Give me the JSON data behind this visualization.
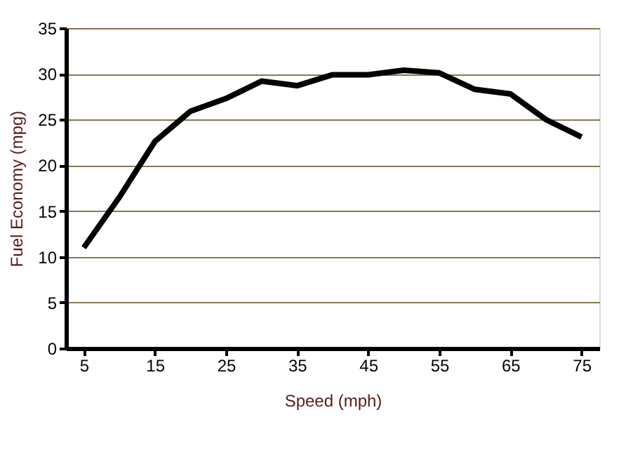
{
  "chart_data": {
    "type": "line",
    "xlabel": "Speed (mph)",
    "ylabel": "Fuel Economy (mpg)",
    "x": [
      5,
      10,
      15,
      20,
      25,
      30,
      35,
      40,
      45,
      50,
      55,
      60,
      65,
      70,
      75
    ],
    "series": [
      {
        "color": "#000000",
        "values": [
          11,
          16.5,
          22.6,
          25.9,
          27.3,
          29.2,
          28.7,
          29.9,
          29.9,
          30.4,
          30.1,
          28.3,
          27.8,
          25,
          23.1
        ]
      }
    ],
    "xlim": [
      2.5,
      77.5
    ],
    "xticks": [
      5,
      15,
      25,
      35,
      45,
      55,
      65,
      75
    ],
    "ylim": [
      0,
      35
    ],
    "yticks": [
      0,
      5,
      10,
      15,
      20,
      25,
      30,
      35
    ],
    "grid": "y",
    "marker": "none",
    "line_style": "solid"
  }
}
